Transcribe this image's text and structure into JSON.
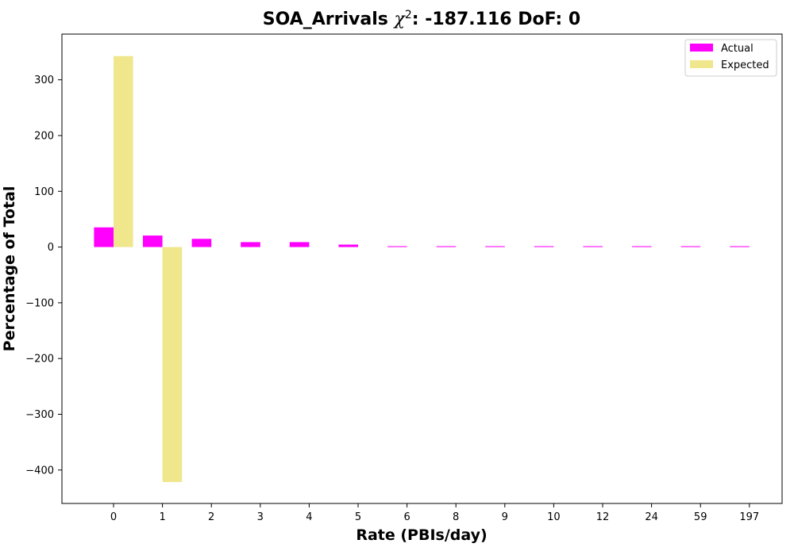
{
  "chart_data": {
    "type": "bar",
    "title": {
      "prefix": "SOA_Arrivals ",
      "chi": "χ",
      "sup": "2",
      "suffix": ": -187.116 DoF: 0"
    },
    "xlabel": "Rate (PBIs/day)",
    "ylabel": "Percentage of Total",
    "categories": [
      "0",
      "1",
      "2",
      "3",
      "4",
      "5",
      "6",
      "8",
      "9",
      "10",
      "12",
      "24",
      "59",
      "197"
    ],
    "series": [
      {
        "name": "Actual",
        "color": "#ff00ff",
        "values": [
          35.3,
          20.6,
          14.7,
          8.8,
          8.8,
          4.4,
          1.5,
          1.5,
          1.5,
          1.5,
          1.5,
          1.5,
          1.5,
          1.5
        ]
      },
      {
        "name": "Expected",
        "color": "#f0e68c",
        "values": [
          342.6,
          -421.5,
          0,
          0,
          0,
          0,
          0,
          0,
          0,
          0,
          0,
          0,
          0,
          0
        ]
      }
    ],
    "yticks": [
      300,
      200,
      100,
      0,
      -100,
      -200,
      -300,
      -400
    ],
    "ytick_labels": [
      "300",
      "200",
      "100",
      "0",
      "−100",
      "−200",
      "−300",
      "−400"
    ],
    "ylim": [
      -460,
      382
    ],
    "legend_position": "top-right",
    "grid": false
  }
}
